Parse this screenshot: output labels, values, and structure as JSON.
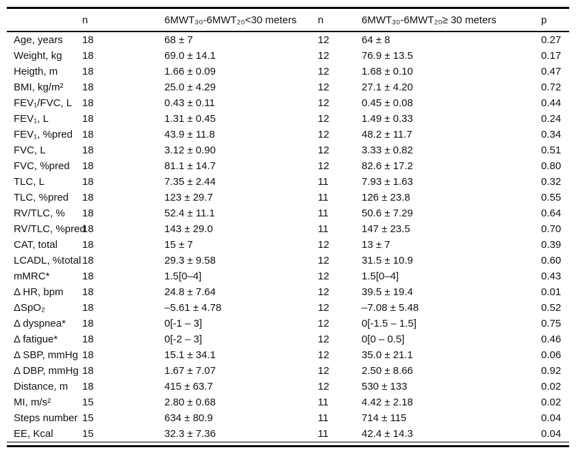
{
  "colors": {
    "background": "#ffffff",
    "text": "#111111",
    "rule": "#000000"
  },
  "table": {
    "columns": [
      "",
      "n",
      "6MWT₃₀-6MWT₂₀<30 meters",
      "n",
      "6MWT₃₀-6MWT₂₀≥ 30 meters",
      "p"
    ],
    "rows": [
      [
        "Age, years",
        "18",
        "68 ± 7",
        "12",
        "64 ± 8",
        "0.27"
      ],
      [
        "Weight, kg",
        "18",
        "69.0 ± 14.1",
        "12",
        "76.9 ± 13.5",
        "0.17"
      ],
      [
        "Heigth, m",
        "18",
        "1.66 ± 0.09",
        "12",
        "1.68 ± 0.10",
        "0.47"
      ],
      [
        "BMI, kg/m²",
        "18",
        "25.0 ± 4.29",
        "12",
        "27.1 ± 4.20",
        "0.72"
      ],
      [
        "FEV₁/FVC, L",
        "18",
        "0.43 ± 0.11",
        "12",
        "0.45 ± 0.08",
        "0.44"
      ],
      [
        "FEV₁, L",
        "18",
        "1.31 ± 0.45",
        "12",
        "1.49 ± 0.33",
        "0.24"
      ],
      [
        "FEV₁, %pred",
        "18",
        "43.9 ± 11.8",
        "12",
        "48.2 ± 11.7",
        "0.34"
      ],
      [
        "FVC, L",
        "18",
        "3.12 ± 0.90",
        "12",
        "3.33 ± 0.82",
        "0.51"
      ],
      [
        "FVC, %pred",
        "18",
        "81.1 ± 14.7",
        "12",
        "82.6 ± 17.2",
        "0.80"
      ],
      [
        "TLC, L",
        "18",
        "7.35 ± 2.44",
        "11",
        "7.93 ± 1.63",
        "0.32"
      ],
      [
        "TLC, %pred",
        "18",
        "123 ± 29.7",
        "11",
        "126 ± 23.8",
        "0.55"
      ],
      [
        "RV/TLC, %",
        "18",
        "52.4 ± 11.1",
        "11",
        "50.6 ± 7.29",
        "0.64"
      ],
      [
        "RV/TLC, %pred",
        "18",
        "143 ± 29.0",
        "11",
        "147 ± 23.5",
        "0.70"
      ],
      [
        "CAT, total",
        "18",
        "15 ± 7",
        "12",
        "13 ± 7",
        "0.39"
      ],
      [
        "LCADL, %total",
        "18",
        "29.3 ± 9.58",
        "12",
        "31.5 ± 10.9",
        "0.60"
      ],
      [
        "mMRC*",
        "18",
        "1.5[0–4]",
        "12",
        "1.5[0–4]",
        "0.43"
      ],
      [
        "Δ HR, bpm",
        "18",
        "24.8 ± 7.64",
        "12",
        "39.5 ± 19.4",
        "0.01"
      ],
      [
        "ΔSpO₂",
        "18",
        "–5.61 ± 4.78",
        "12",
        "–7.08 ± 5.48",
        "0.52"
      ],
      [
        "Δ dyspnea*",
        "18",
        "0[-1 – 3]",
        "12",
        "0[-1.5 – 1.5]",
        "0.75"
      ],
      [
        "Δ fatigue*",
        "18",
        "0[-2 – 3]",
        "12",
        "0[0 – 0.5]",
        "0.46"
      ],
      [
        "Δ SBP, mmHg",
        "18",
        "15.1 ± 34.1",
        "12",
        "35.0 ± 21.1",
        "0.06"
      ],
      [
        "Δ DBP, mmHg",
        "18",
        "1.67 ± 7.07",
        "12",
        "2.50 ± 8.66",
        "0.92"
      ],
      [
        "Distance, m",
        "18",
        "415 ± 63.7",
        "12",
        "530 ± 133",
        "0.02"
      ],
      [
        "MI, m/s²",
        "15",
        "2.80 ± 0.68",
        "11",
        "4.42 ± 2.18",
        "0.02"
      ],
      [
        "Steps number",
        "15",
        "634 ± 80.9",
        "11",
        "714 ± 115",
        "0.04"
      ],
      [
        "EE, Kcal",
        "15",
        "32.3 ± 7.36",
        "11",
        "42.4 ± 14.3",
        "0.04"
      ]
    ]
  }
}
